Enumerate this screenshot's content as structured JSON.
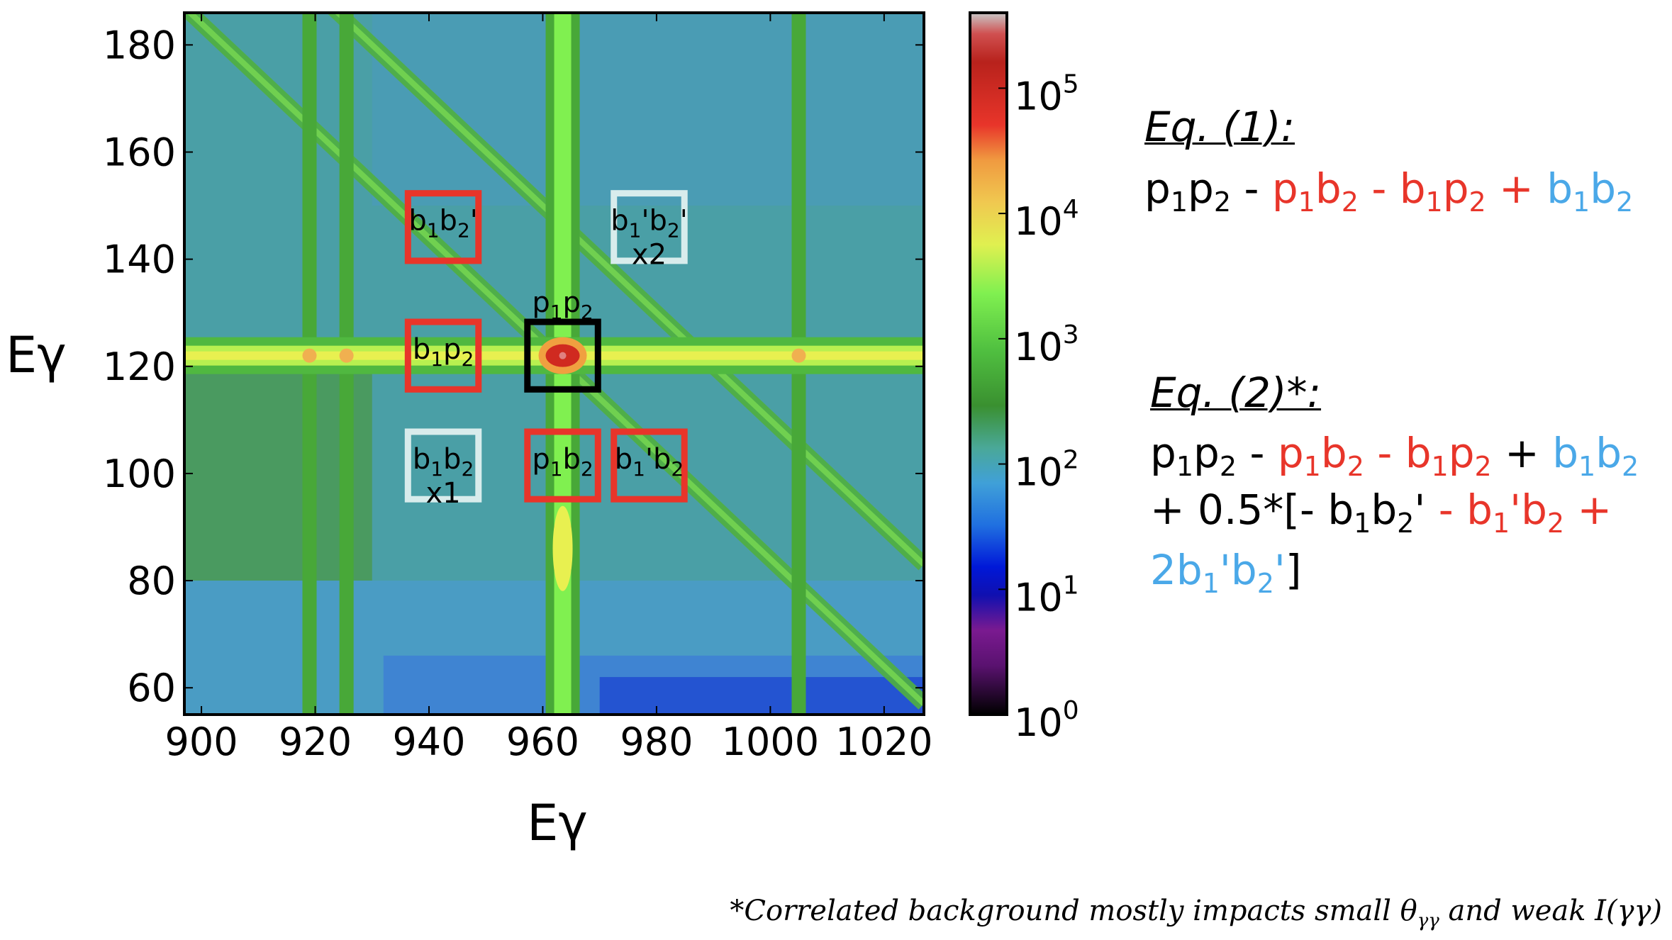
{
  "chart_data": {
    "type": "heatmap",
    "xlabel": "Eγ",
    "ylabel": "Eγ",
    "xlim": [
      897,
      1027
    ],
    "ylim": [
      55,
      186
    ],
    "xticks": [
      900,
      920,
      940,
      960,
      980,
      1000,
      1020
    ],
    "yticks": [
      60,
      80,
      100,
      120,
      140,
      160,
      180
    ],
    "colorbar": {
      "scale": "log",
      "range": [
        1,
        400000
      ],
      "ticks": [
        "10^0",
        "10^1",
        "10^2",
        "10^3",
        "10^4",
        "10^5"
      ],
      "colormap": "spectral"
    },
    "features": {
      "horizontal_band_y": 122,
      "vertical_band_x": 963.5,
      "vertical_lines_x": [
        919,
        925.5,
        1005
      ],
      "diagonal_sums": [
        1084,
        1110
      ],
      "peak": [
        963.5,
        122
      ]
    },
    "regions": [
      {
        "label_main": "b1b2'",
        "parts": [
          [
            "b",
            ""
          ],
          [
            "1",
            "sub"
          ],
          [
            "b",
            ""
          ],
          [
            "2",
            "sub"
          ],
          [
            "’",
            ""
          ]
        ],
        "extra": "",
        "cx": 942.5,
        "cy": 146,
        "color": "#e8352a"
      },
      {
        "label_main": "b1p2",
        "parts": [
          [
            "b",
            ""
          ],
          [
            "1",
            "sub"
          ],
          [
            "p",
            ""
          ],
          [
            "2",
            "sub"
          ]
        ],
        "extra": "",
        "cx": 942.5,
        "cy": 122,
        "color": "#e8352a"
      },
      {
        "label_main": "b1b2",
        "parts": [
          [
            "b",
            ""
          ],
          [
            "1",
            "sub"
          ],
          [
            "b",
            ""
          ],
          [
            "2",
            "sub"
          ]
        ],
        "extra": "x1",
        "cx": 942.5,
        "cy": 101.5,
        "color": "#d8ecec"
      },
      {
        "label_main": "p1p2",
        "parts": [
          [
            "p",
            ""
          ],
          [
            "1",
            "sub"
          ],
          [
            "p",
            ""
          ],
          [
            "2",
            "sub"
          ]
        ],
        "extra": "",
        "cx": 963.5,
        "cy": 122,
        "color": "#000000",
        "label_above": true
      },
      {
        "label_main": "p1b2",
        "parts": [
          [
            "p",
            ""
          ],
          [
            "1",
            "sub"
          ],
          [
            "b",
            ""
          ],
          [
            "2",
            "sub"
          ]
        ],
        "extra": "",
        "cx": 963.5,
        "cy": 101.5,
        "color": "#e8352a"
      },
      {
        "label_main": "b1'b2",
        "parts": [
          [
            "b",
            ""
          ],
          [
            "1",
            "sub"
          ],
          [
            "’b",
            ""
          ],
          [
            "2",
            "sub"
          ]
        ],
        "extra": "",
        "cx": 978.7,
        "cy": 101.5,
        "color": "#e8352a"
      },
      {
        "label_main": "b1'b2'",
        "parts": [
          [
            "b",
            ""
          ],
          [
            "1",
            "sub"
          ],
          [
            "’b",
            ""
          ],
          [
            "2",
            "sub"
          ],
          [
            "’",
            ""
          ]
        ],
        "extra": "x2",
        "cx": 978.7,
        "cy": 146,
        "color": "#d8ecec"
      }
    ]
  },
  "colors": {
    "red": "#e8352a",
    "blue": "#4aa8e8"
  },
  "equations": {
    "eq1_title": "Eq. (1):",
    "eq2_title": "Eq. (2)*:",
    "eq1": "p1p2 - p1b2 - b1p2 + b1b2",
    "eq2_line1": "p1p2 - p1b2 - b1p2 + b1b2",
    "eq2_line2": "+ 0.5*[- b1b2' - b1'b2 +",
    "eq2_line3": "2b1'b2']"
  },
  "footnote": {
    "text_before": "*Correlated background mostly impacts small θ",
    "sub": "γγ",
    "text_after": " and weak I(γγ)"
  }
}
